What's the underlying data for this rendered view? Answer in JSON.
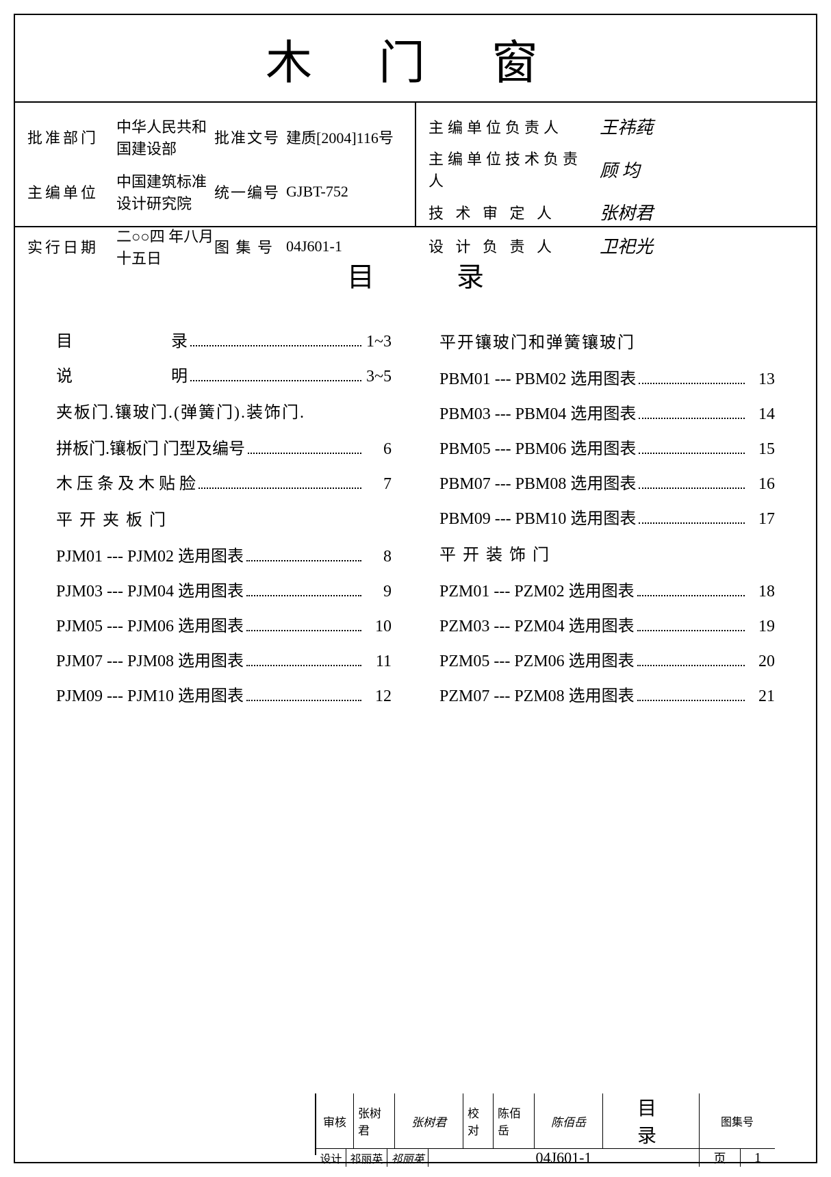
{
  "title": "木 门 窗",
  "header_left": {
    "rows": [
      {
        "label": "批准部门",
        "mid": "中华人民共和国建设部",
        "codelbl": "批准文号",
        "code": "建质[2004]116号"
      },
      {
        "label": "主编单位",
        "mid": "中国建筑标准设计研究院",
        "codelbl": "统一编号",
        "code": "GJBT-752"
      },
      {
        "label": "实行日期",
        "mid": "二○○四 年八月十五日",
        "codelbl": "图 集 号",
        "code": "04J601-1"
      }
    ]
  },
  "header_right": {
    "sigs": [
      {
        "label": "主编单位负责人",
        "val": "王祎莼"
      },
      {
        "label": "主编单位技术负责人",
        "val": "顾 均"
      },
      {
        "label": "技 术 审 定 人",
        "val": "张树君"
      },
      {
        "label": "设 计 负 责 人",
        "val": "卫祀光"
      }
    ]
  },
  "toc_title": "目录",
  "toc_left": [
    {
      "type": "item",
      "label": "目　　　　　　录",
      "page": "1~3"
    },
    {
      "type": "item",
      "label": "说　　　　　　明",
      "page": "3~5"
    },
    {
      "type": "text",
      "label": "夹板门.镶玻门.(弹簧门).装饰门."
    },
    {
      "type": "item",
      "label": "拼板门.镶板门 门型及编号",
      "page": "6"
    },
    {
      "type": "item",
      "label": "木 压 条 及 木 贴 脸",
      "page": "7"
    },
    {
      "type": "heading",
      "label": "平 开 夹 板 门"
    },
    {
      "type": "item",
      "label": "PJM01 --- PJM02 选用图表",
      "page": "8"
    },
    {
      "type": "item",
      "label": "PJM03 --- PJM04 选用图表",
      "page": "9"
    },
    {
      "type": "item",
      "label": "PJM05 --- PJM06 选用图表",
      "page": "10"
    },
    {
      "type": "item",
      "label": "PJM07 --- PJM08 选用图表",
      "page": "11"
    },
    {
      "type": "item",
      "label": "PJM09 --- PJM10 选用图表",
      "page": "12"
    }
  ],
  "toc_right": [
    {
      "type": "heading",
      "label": "平开镶玻门和弹簧镶玻门"
    },
    {
      "type": "item",
      "label": "PBM01 --- PBM02 选用图表",
      "page": "13"
    },
    {
      "type": "item",
      "label": "PBM03 --- PBM04 选用图表",
      "page": "14"
    },
    {
      "type": "item",
      "label": "PBM05 --- PBM06 选用图表",
      "page": "15"
    },
    {
      "type": "item",
      "label": "PBM07 --- PBM08 选用图表",
      "page": "16"
    },
    {
      "type": "item",
      "label": "PBM09 --- PBM10 选用图表",
      "page": "17"
    },
    {
      "type": "heading",
      "label": "平 开 装 饰 门"
    },
    {
      "type": "item",
      "label": "PZM01 --- PZM02 选用图表",
      "page": "18"
    },
    {
      "type": "item",
      "label": "PZM03 --- PZM04 选用图表",
      "page": "19"
    },
    {
      "type": "item",
      "label": "PZM05 --- PZM06 选用图表",
      "page": "20"
    },
    {
      "type": "item",
      "label": "PZM07 --- PZM08 选用图表",
      "page": "21"
    }
  ],
  "footer": {
    "row1": {
      "c1": "审核",
      "c2": "张树君",
      "c3": "张树君",
      "c4": "校对",
      "c5": "陈佰岳",
      "c6": "陈佰岳",
      "c7": "设计",
      "c8": "祁丽英",
      "c9": "祁丽英",
      "big": "目录",
      "codelbl": "图集号"
    },
    "row2": {
      "code": "04J601-1",
      "pagelbl": "页",
      "pagenum": "1"
    }
  }
}
